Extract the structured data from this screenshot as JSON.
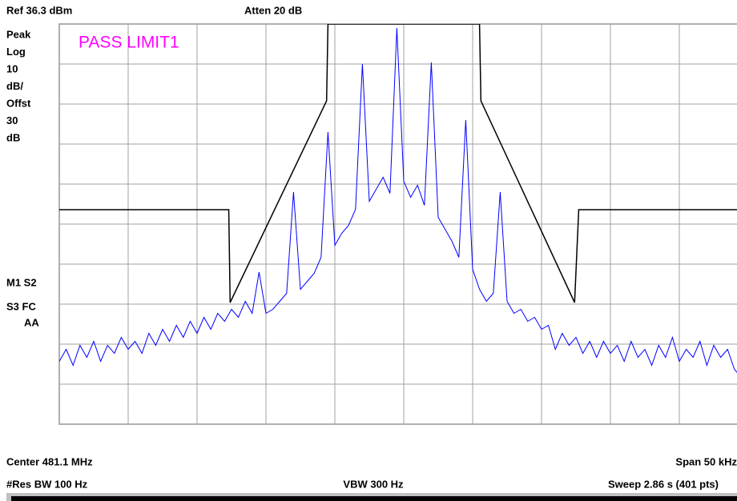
{
  "header": {
    "ref": "Ref 36.3 dBm",
    "atten": "Atten 20 dB"
  },
  "left_labels": [
    "Peak",
    "Log",
    "10",
    "dB/",
    "Offst",
    "30",
    "dB"
  ],
  "status_labels": [
    "M1  S2",
    "S3  FC",
    "AA"
  ],
  "limit_status": "PASS LIMIT1",
  "footer": {
    "center": "Center 481.1 MHz",
    "span": "Span 50 kHz",
    "rbw": "#Res BW 100 Hz",
    "vbw": "VBW 300 Hz",
    "sweep": "Sweep 2.86 s (401 pts)"
  },
  "chart_data": {
    "type": "line",
    "xlim": [
      481.075,
      481.125
    ],
    "ylim": [
      -63.7,
      36.3
    ],
    "xticks": [
      481.075,
      481.08,
      481.085,
      481.09,
      481.095,
      481.1,
      481.105,
      481.11,
      481.115,
      481.12,
      481.125
    ],
    "yticks": [
      36.3,
      26.3,
      16.3,
      6.3,
      -3.7,
      -13.7,
      -23.7,
      -33.7,
      -43.7,
      -53.7,
      -63.7
    ],
    "grid": true,
    "series": [
      {
        "color": "#0000ff",
        "x": [
          481.075,
          481.0755,
          481.076,
          481.0765,
          481.077,
          481.0775,
          481.078,
          481.0785,
          481.079,
          481.0795,
          481.08,
          481.0805,
          481.081,
          481.0815,
          481.082,
          481.0825,
          481.083,
          481.0835,
          481.084,
          481.0845,
          481.085,
          481.0855,
          481.086,
          481.0865,
          481.087,
          481.0875,
          481.088,
          481.0885,
          481.089,
          481.0895,
          481.09,
          481.0905,
          481.091,
          481.0915,
          481.092,
          481.0925,
          481.093,
          481.0935,
          481.094,
          481.0945,
          481.095,
          481.0955,
          481.096,
          481.0965,
          481.097,
          481.0975,
          481.098,
          481.0985,
          481.099,
          481.0995,
          481.1,
          481.1005,
          481.101,
          481.1015,
          481.102,
          481.1025,
          481.103,
          481.1035,
          481.104,
          481.1045,
          481.105,
          481.1055,
          481.106,
          481.1065,
          481.107,
          481.1075,
          481.108,
          481.1085,
          481.109,
          481.1095,
          481.11,
          481.1105,
          481.111,
          481.1115,
          481.112,
          481.1125,
          481.113,
          481.1135,
          481.114,
          481.1145,
          481.115,
          481.1155,
          481.116,
          481.1165,
          481.117,
          481.1175,
          481.118,
          481.1185,
          481.119,
          481.1195,
          481.12,
          481.1205,
          481.121,
          481.1215,
          481.122,
          481.1225,
          481.123,
          481.1235,
          481.124,
          481.1245,
          481.125
        ],
        "values": [
          -48,
          -45,
          -49,
          -44,
          -47,
          -43,
          -48,
          -44,
          -46,
          -42,
          -45,
          -43,
          -46,
          -41,
          -44,
          -40,
          -43,
          -39,
          -42,
          -38,
          -41,
          -37,
          -40,
          -36,
          -38,
          -35,
          -37,
          -33,
          -36,
          -25.7,
          -36,
          -35,
          -33,
          -31,
          -5.7,
          -30,
          -28,
          -26,
          -22,
          9.3,
          -19,
          -16,
          -14,
          -10,
          26.3,
          -8,
          -5,
          -2,
          -6,
          35.3,
          -3,
          -7,
          -4,
          -9,
          26.7,
          -12,
          -15,
          -18,
          -22,
          12.3,
          -25,
          -30,
          -33,
          -31,
          -5.7,
          -33,
          -36,
          -35,
          -38,
          -37,
          -40,
          -39,
          -45,
          -41,
          -44,
          -42,
          -46,
          -43,
          -47,
          -43,
          -46,
          -44,
          -48,
          -43,
          -47,
          -45,
          -49,
          -44,
          -47,
          -42,
          -48,
          -45,
          -47,
          -43,
          -49,
          -44,
          -47,
          -45,
          -50,
          -52,
          -49
        ]
      },
      {
        "color": "#000000",
        "x": [
          481.075,
          481.0873,
          481.0874,
          481.0944,
          481.0945,
          481.1055,
          481.1056,
          481.1124,
          481.1127,
          481.125
        ],
        "values": [
          -10.1,
          -10.1,
          -33.3,
          17.1,
          36.3,
          36.3,
          17.1,
          -33.3,
          -10.1,
          -10.1
        ]
      }
    ]
  }
}
